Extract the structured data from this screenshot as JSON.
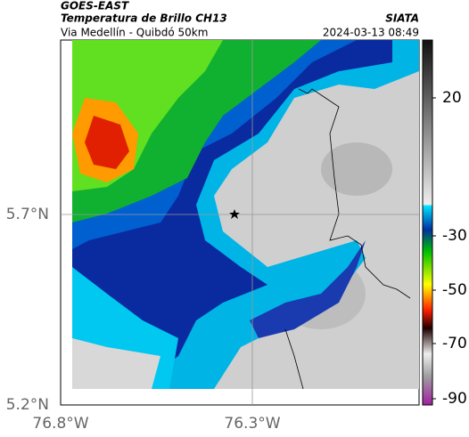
{
  "header": {
    "satellite": "GOES-EAST",
    "product": "Temperatura de Brillo CH13",
    "agency": "SIATA",
    "route": "Via Medellín - Quibdó 50km",
    "timestamp": "2024-03-13 08:49"
  },
  "axes": {
    "latitudes": [
      "5.7°N",
      "5.2°N"
    ],
    "longitudes": [
      "76.8°W",
      "76.3°W"
    ]
  },
  "colorbar": {
    "ticks": [
      "20",
      "-30",
      "-50",
      "-70",
      "-90"
    ]
  }
}
